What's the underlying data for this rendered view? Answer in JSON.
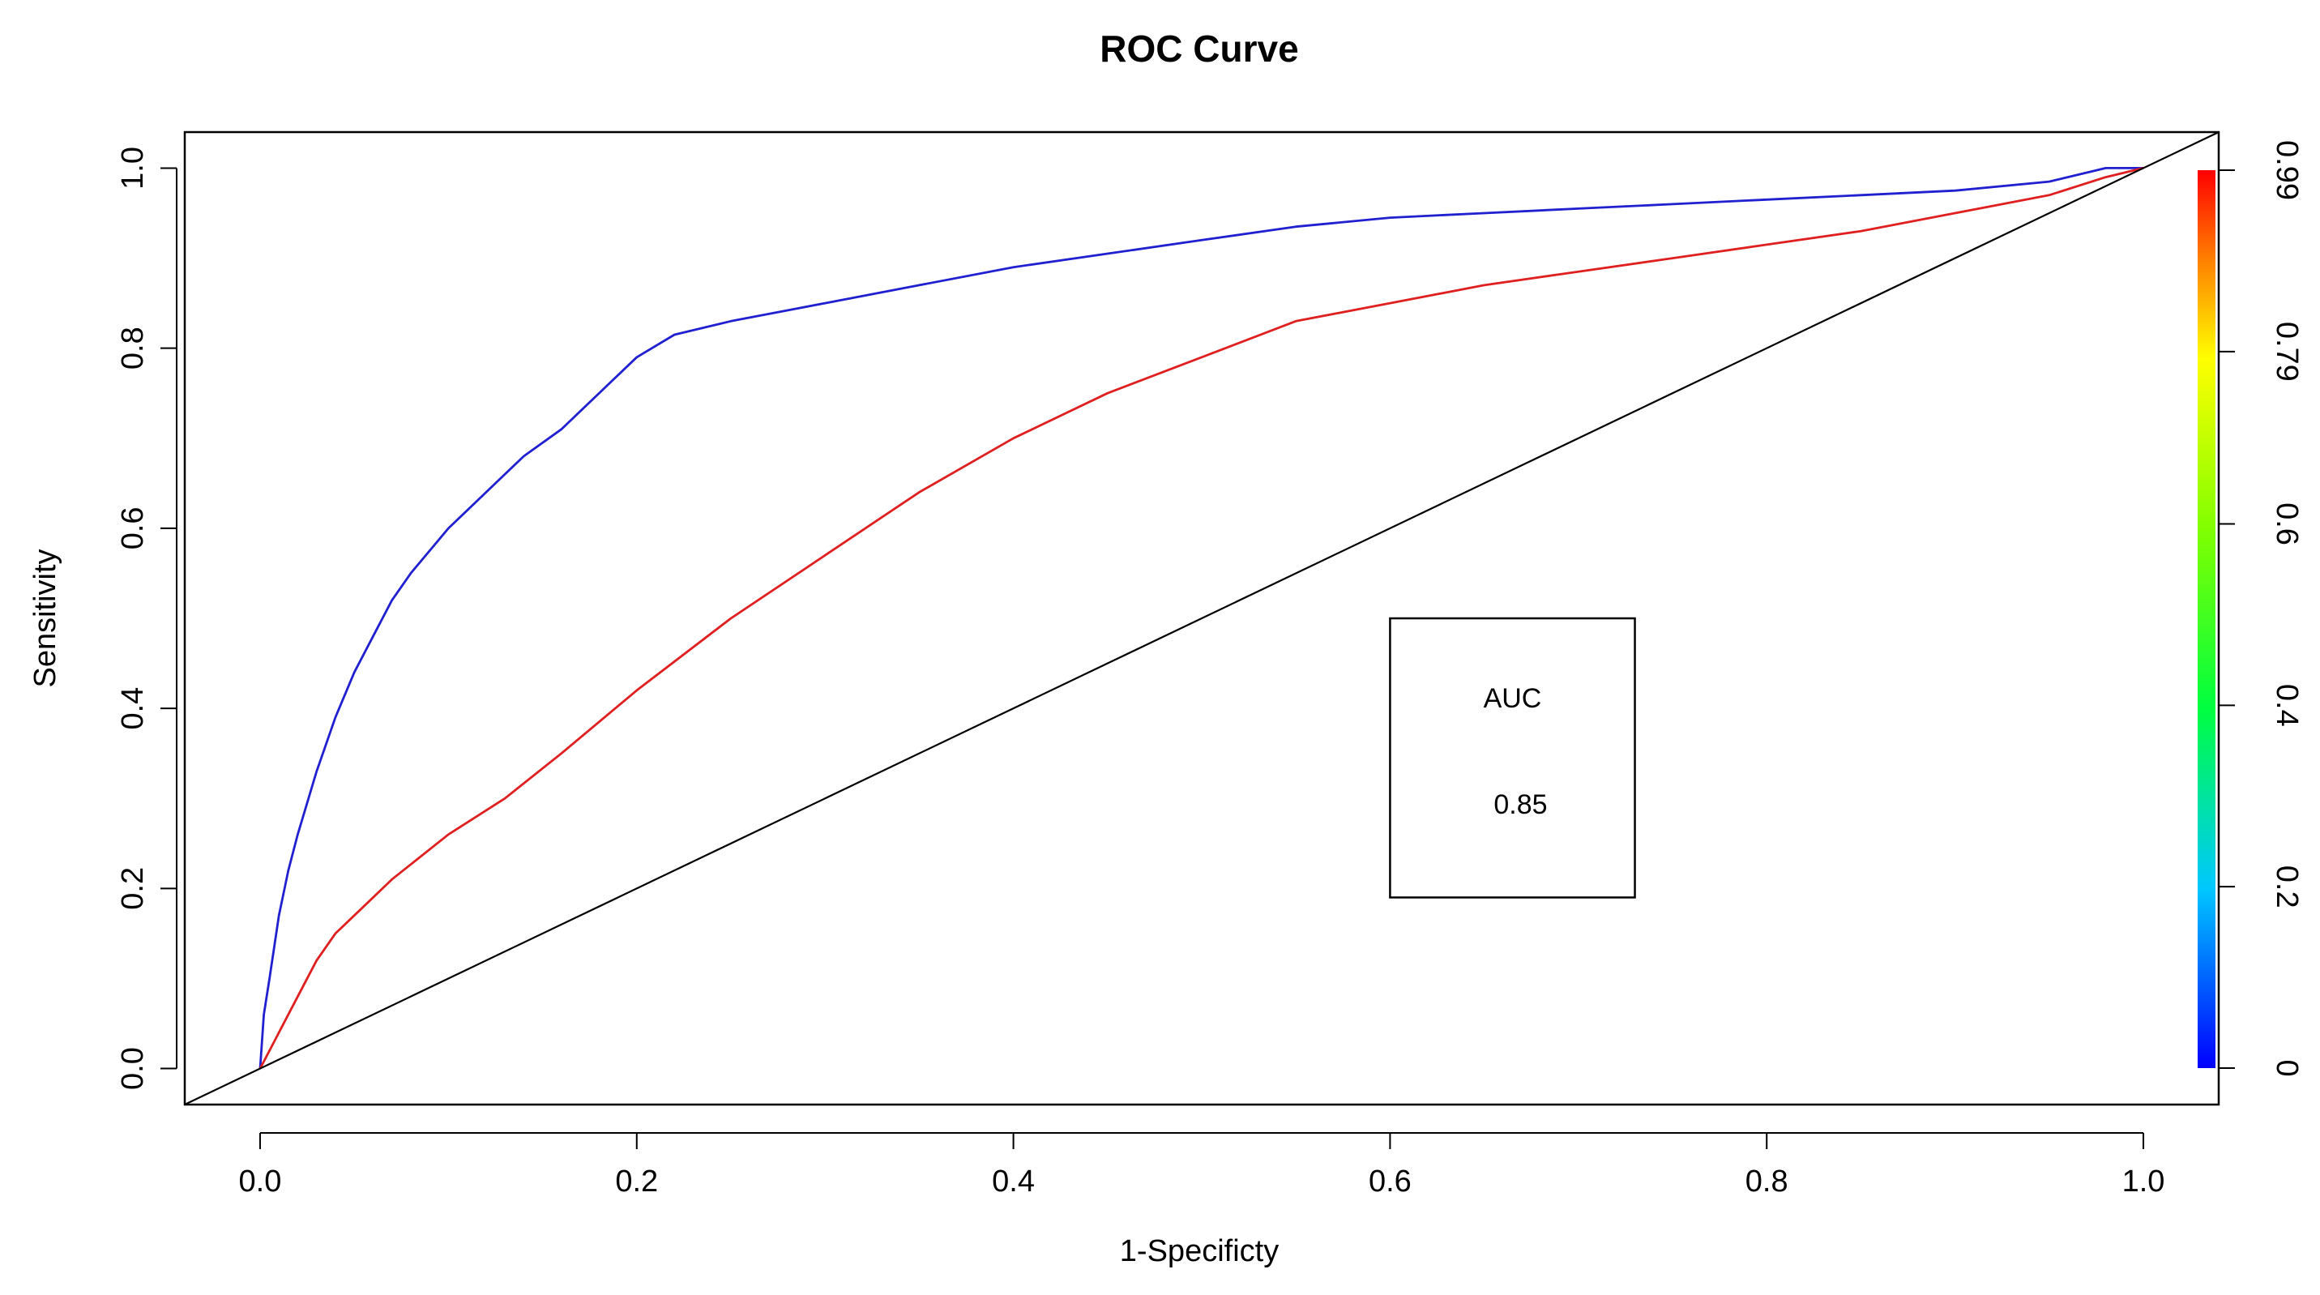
{
  "chart_data": {
    "type": "line",
    "title": "ROC Curve",
    "xlabel": "1-Specificty",
    "ylabel": "Sensitivity",
    "xlim": [
      -0.04,
      1.04
    ],
    "ylim": [
      -0.04,
      1.04
    ],
    "x_ticks": [
      "0.0",
      "0.2",
      "0.4",
      "0.6",
      "0.8",
      "1.0"
    ],
    "x_tick_values": [
      0,
      0.2,
      0.4,
      0.6,
      0.8,
      1.0
    ],
    "y_ticks": [
      "0.0",
      "0.2",
      "0.4",
      "0.6",
      "0.8",
      "1.0"
    ],
    "y_tick_values": [
      0,
      0.2,
      0.4,
      0.6,
      0.8,
      1.0
    ],
    "colorbar": {
      "labels": [
        "0",
        "0.2",
        "0.4",
        "0.6",
        "0.79",
        "0.99"
      ],
      "values": [
        0,
        0.2,
        0.4,
        0.6,
        0.79,
        0.99
      ],
      "colors": [
        "#0000ff",
        "#00c8ff",
        "#00ff00",
        "#ffff00",
        "#ff8000",
        "#ff0000"
      ]
    },
    "series": [
      {
        "name": "blue-curve",
        "color": "#2020d0",
        "x": [
          0,
          0.002,
          0.005,
          0.01,
          0.015,
          0.02,
          0.03,
          0.04,
          0.05,
          0.06,
          0.07,
          0.08,
          0.1,
          0.12,
          0.14,
          0.16,
          0.18,
          0.2,
          0.22,
          0.25,
          0.3,
          0.35,
          0.4,
          0.45,
          0.5,
          0.55,
          0.6,
          0.65,
          0.7,
          0.75,
          0.8,
          0.85,
          0.9,
          0.95,
          0.98,
          1.0
        ],
        "y": [
          0,
          0.06,
          0.1,
          0.17,
          0.22,
          0.26,
          0.33,
          0.39,
          0.44,
          0.48,
          0.52,
          0.55,
          0.6,
          0.64,
          0.68,
          0.71,
          0.75,
          0.79,
          0.815,
          0.83,
          0.85,
          0.87,
          0.89,
          0.905,
          0.92,
          0.935,
          0.945,
          0.95,
          0.955,
          0.96,
          0.965,
          0.97,
          0.975,
          0.985,
          1.0,
          1.0
        ]
      },
      {
        "name": "red-curve",
        "color": "#e02020",
        "x": [
          0,
          0.01,
          0.02,
          0.03,
          0.04,
          0.05,
          0.07,
          0.1,
          0.13,
          0.16,
          0.2,
          0.25,
          0.3,
          0.35,
          0.4,
          0.45,
          0.5,
          0.55,
          0.6,
          0.65,
          0.7,
          0.75,
          0.8,
          0.85,
          0.9,
          0.95,
          0.98,
          1.0
        ],
        "y": [
          0,
          0.04,
          0.08,
          0.12,
          0.15,
          0.17,
          0.21,
          0.26,
          0.3,
          0.35,
          0.42,
          0.5,
          0.57,
          0.64,
          0.7,
          0.75,
          0.79,
          0.83,
          0.85,
          0.87,
          0.885,
          0.9,
          0.915,
          0.93,
          0.95,
          0.97,
          0.99,
          1.0
        ]
      },
      {
        "name": "diagonal-reference",
        "color": "#000000",
        "x": [
          -0.04,
          1.04
        ],
        "y": [
          -0.04,
          1.04
        ]
      }
    ],
    "annotation": {
      "label": "AUC",
      "value": "0.85",
      "x_range": [
        0.6,
        0.73
      ],
      "y_range": [
        0.19,
        0.5
      ]
    }
  }
}
